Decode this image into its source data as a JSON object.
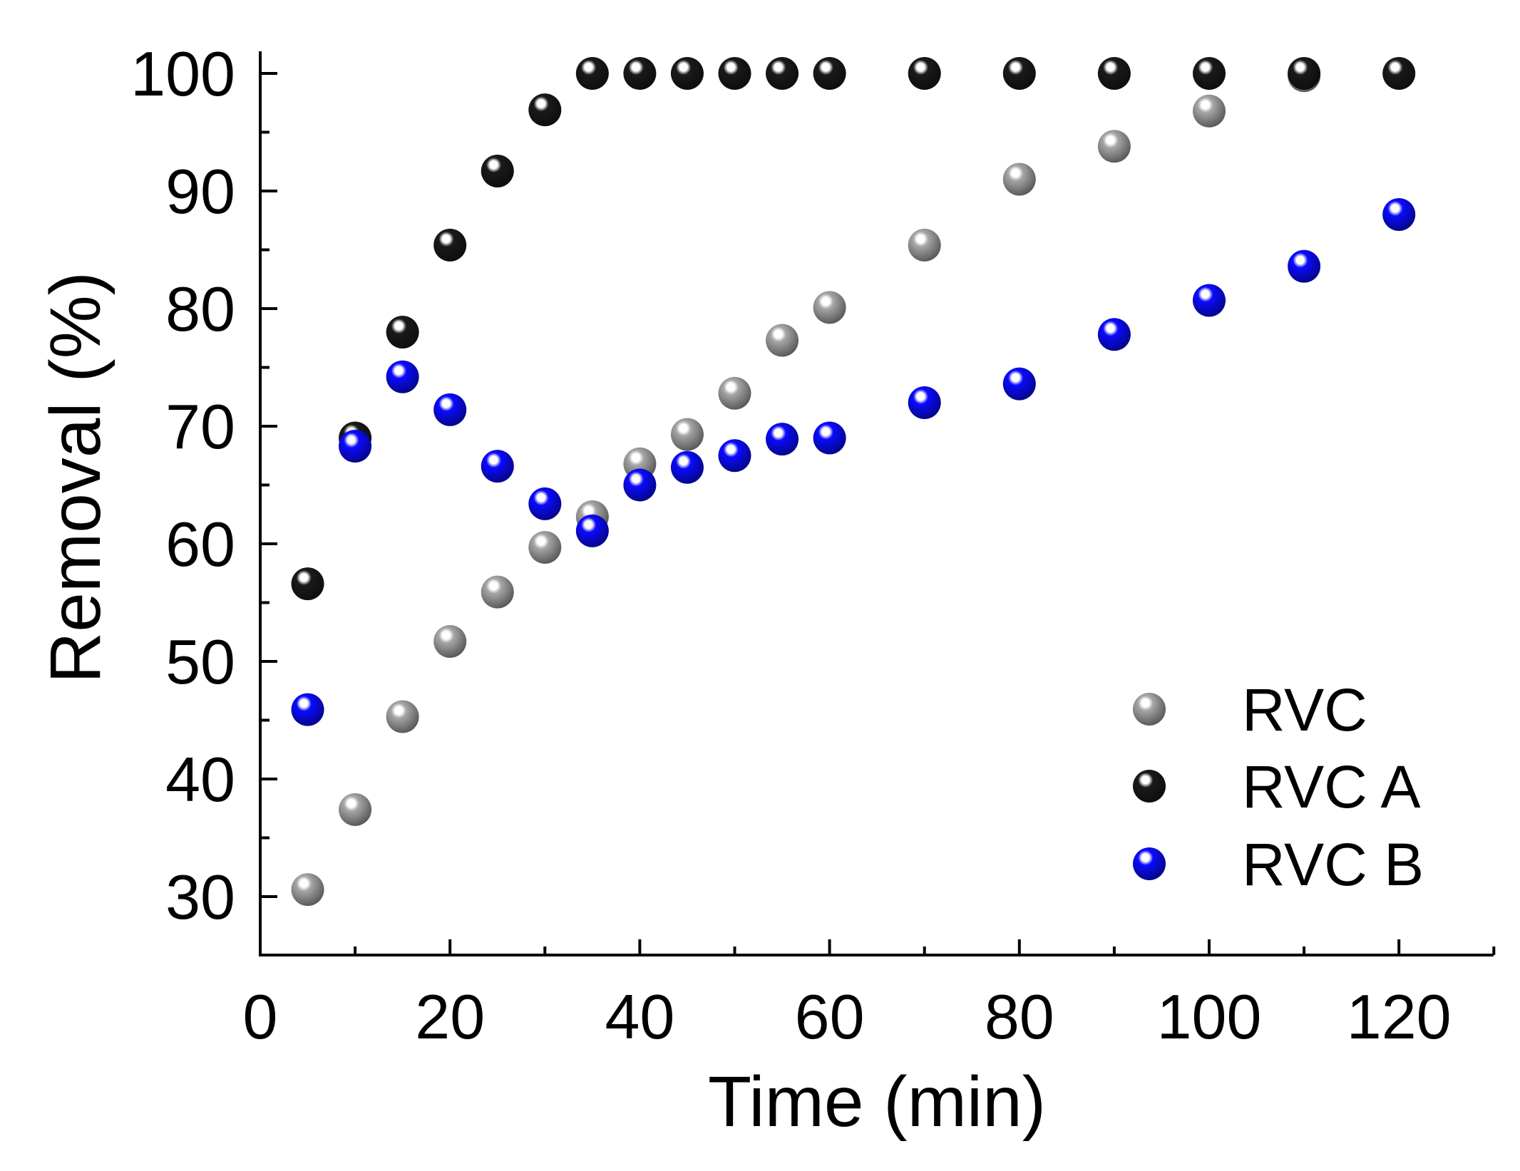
{
  "chart_data": {
    "type": "scatter",
    "title": "",
    "xlabel": "Time (min)",
    "ylabel": "Removal (%)",
    "xlim": [
      0,
      130
    ],
    "ylim": [
      25,
      102
    ],
    "x_ticks": [
      0,
      20,
      40,
      60,
      80,
      100,
      120
    ],
    "y_ticks": [
      30,
      40,
      50,
      60,
      70,
      80,
      90,
      100
    ],
    "grid": false,
    "legend_position": "bottom-right",
    "series": [
      {
        "name": "RVC",
        "color": "#a6a6a6",
        "x": [
          5,
          10,
          15,
          20,
          25,
          30,
          35,
          40,
          45,
          50,
          55,
          60,
          70,
          80,
          90,
          100,
          110
        ],
        "values": [
          30.6,
          37.4,
          45.3,
          51.7,
          55.9,
          59.7,
          62.3,
          66.8,
          69.3,
          72.8,
          77.3,
          80.1,
          85.4,
          91.0,
          93.8,
          96.8,
          99.8
        ]
      },
      {
        "name": "RVC A",
        "color": "#1a1a1a",
        "x": [
          5,
          10,
          15,
          20,
          25,
          30,
          35,
          40,
          45,
          50,
          55,
          60,
          70,
          80,
          90,
          100,
          110,
          120
        ],
        "values": [
          56.6,
          69.0,
          78.0,
          85.4,
          91.7,
          96.9,
          100,
          100,
          100,
          100,
          100,
          100,
          100,
          100,
          100,
          100,
          100,
          100
        ]
      },
      {
        "name": "RVC B",
        "color": "#0a0aff",
        "x": [
          5,
          10,
          15,
          20,
          25,
          30,
          35,
          40,
          45,
          50,
          55,
          60,
          70,
          80,
          90,
          100,
          110,
          120
        ],
        "values": [
          45.9,
          68.3,
          74.2,
          71.4,
          66.6,
          63.4,
          61.1,
          65.0,
          66.5,
          67.5,
          68.9,
          69.0,
          72.0,
          73.6,
          77.8,
          80.7,
          83.6,
          88.0
        ]
      }
    ]
  }
}
